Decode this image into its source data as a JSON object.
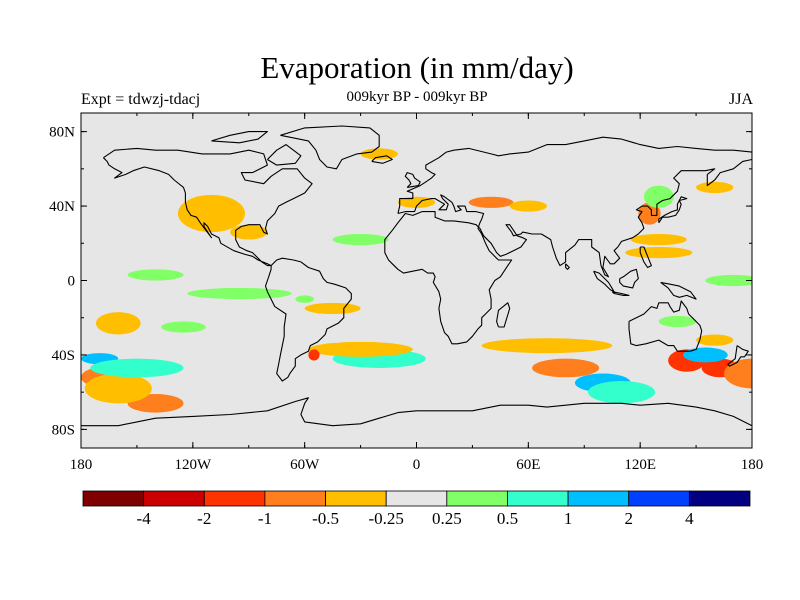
{
  "title": "Evaporation (in mm/day)",
  "subtitle": "009kyr BP - 009kyr BP",
  "left_label": "Expt = tdwzj-tdacj",
  "right_label": "JJA",
  "map": {
    "projection": "cylindrical equidistant",
    "lon_range": [
      -180,
      180
    ],
    "lat_range": [
      -90,
      90
    ],
    "background_color": "#e6e6e6",
    "coastline_color": "#000000",
    "lon_ticks": [
      {
        "value": -180,
        "label": "180"
      },
      {
        "value": -120,
        "label": "120W"
      },
      {
        "value": -60,
        "label": "60W"
      },
      {
        "value": 0,
        "label": "0"
      },
      {
        "value": 60,
        "label": "60E"
      },
      {
        "value": 120,
        "label": "120E"
      },
      {
        "value": 180,
        "label": "180"
      }
    ],
    "lat_ticks": [
      {
        "value": 80,
        "label": "80N"
      },
      {
        "value": 40,
        "label": "40N"
      },
      {
        "value": 0,
        "label": "0"
      },
      {
        "value": -40,
        "label": "40S"
      },
      {
        "value": -80,
        "label": "80S"
      }
    ]
  },
  "colorbar": {
    "colors": [
      "#7f0000",
      "#cc0000",
      "#ff3300",
      "#ff7f1e",
      "#ffbe00",
      "#e6e6e6",
      "#80ff66",
      "#33ffcc",
      "#00bfff",
      "#0040ff",
      "#000080"
    ],
    "labels": [
      "-4",
      "-2",
      "-1",
      "-0.5",
      "-0.25",
      "0.25",
      "0.5",
      "1",
      "2",
      "4"
    ]
  },
  "anomaly_regions": [
    {
      "lon": 163,
      "lat": -47,
      "rx": 10,
      "ry": 5,
      "color": "#ff3300"
    },
    {
      "lon": -165,
      "lat": -52,
      "rx": 15,
      "ry": 6,
      "color": "#ff7f1e"
    },
    {
      "lon": -140,
      "lat": -66,
      "rx": 15,
      "ry": 5,
      "color": "#ff7f1e"
    },
    {
      "lon": -160,
      "lat": -58,
      "rx": 18,
      "ry": 8,
      "color": "#ffbe00"
    },
    {
      "lon": -170,
      "lat": -42,
      "rx": 10,
      "ry": 3,
      "color": "#00bfff"
    },
    {
      "lon": -150,
      "lat": -47,
      "rx": 25,
      "ry": 5,
      "color": "#33ffcc"
    },
    {
      "lon": -160,
      "lat": -23,
      "rx": 12,
      "ry": 6,
      "color": "#ffbe00"
    },
    {
      "lon": -112,
      "lat": 38,
      "rx": 15,
      "ry": 7,
      "color": "#ff7f1e"
    },
    {
      "lon": -110,
      "lat": 36,
      "rx": 18,
      "ry": 10,
      "color": "#ffbe00"
    },
    {
      "lon": -90,
      "lat": 26,
      "rx": 10,
      "ry": 4,
      "color": "#ffbe00"
    },
    {
      "lon": -140,
      "lat": 3,
      "rx": 15,
      "ry": 3,
      "color": "#80ff66"
    },
    {
      "lon": -95,
      "lat": -7,
      "rx": 28,
      "ry": 3,
      "color": "#80ff66"
    },
    {
      "lon": -125,
      "lat": -25,
      "rx": 12,
      "ry": 3,
      "color": "#80ff66"
    },
    {
      "lon": -20,
      "lat": -42,
      "rx": 25,
      "ry": 5,
      "color": "#33ffcc"
    },
    {
      "lon": -30,
      "lat": -37,
      "rx": 28,
      "ry": 4,
      "color": "#ffbe00"
    },
    {
      "lon": -55,
      "lat": -40,
      "rx": 3,
      "ry": 3,
      "color": "#ff3300"
    },
    {
      "lon": 70,
      "lat": -35,
      "rx": 35,
      "ry": 4,
      "color": "#ffbe00"
    },
    {
      "lon": 80,
      "lat": -47,
      "rx": 18,
      "ry": 5,
      "color": "#ff7f1e"
    },
    {
      "lon": 100,
      "lat": -55,
      "rx": 15,
      "ry": 5,
      "color": "#00bfff"
    },
    {
      "lon": 110,
      "lat": -60,
      "rx": 18,
      "ry": 6,
      "color": "#33ffcc"
    },
    {
      "lon": 145,
      "lat": -43,
      "rx": 10,
      "ry": 6,
      "color": "#ff3300"
    },
    {
      "lon": 155,
      "lat": -40,
      "rx": 12,
      "ry": 4,
      "color": "#00bfff"
    },
    {
      "lon": 125,
      "lat": 36,
      "rx": 6,
      "ry": 6,
      "color": "#ff7f1e"
    },
    {
      "lon": 130,
      "lat": 15,
      "rx": 18,
      "ry": 3,
      "color": "#ffbe00"
    },
    {
      "lon": 130,
      "lat": 22,
      "rx": 15,
      "ry": 3,
      "color": "#ffbe00"
    },
    {
      "lon": 170,
      "lat": 0,
      "rx": 15,
      "ry": 3,
      "color": "#80ff66"
    },
    {
      "lon": 140,
      "lat": -22,
      "rx": 10,
      "ry": 3,
      "color": "#80ff66"
    },
    {
      "lon": 160,
      "lat": -32,
      "rx": 10,
      "ry": 3,
      "color": "#ffbe00"
    },
    {
      "lon": -30,
      "lat": 22,
      "rx": 15,
      "ry": 3,
      "color": "#80ff66"
    },
    {
      "lon": 40,
      "lat": 42,
      "rx": 12,
      "ry": 3,
      "color": "#ff7f1e"
    },
    {
      "lon": 0,
      "lat": 42,
      "rx": 10,
      "ry": 3,
      "color": "#ffbe00"
    },
    {
      "lon": -20,
      "lat": 68,
      "rx": 10,
      "ry": 3,
      "color": "#ffbe00"
    },
    {
      "lon": 130,
      "lat": 45,
      "rx": 8,
      "ry": 6,
      "color": "#80ff66"
    },
    {
      "lon": 160,
      "lat": 50,
      "rx": 10,
      "ry": 3,
      "color": "#ffbe00"
    },
    {
      "lon": 60,
      "lat": 40,
      "rx": 10,
      "ry": 3,
      "color": "#ffbe00"
    },
    {
      "lon": -45,
      "lat": -15,
      "rx": 15,
      "ry": 3,
      "color": "#ffbe00"
    },
    {
      "lon": -60,
      "lat": -10,
      "rx": 5,
      "ry": 2,
      "color": "#80ff66"
    },
    {
      "lon": 180,
      "lat": -50,
      "rx": 15,
      "ry": 8,
      "color": "#ff7f1e"
    }
  ]
}
